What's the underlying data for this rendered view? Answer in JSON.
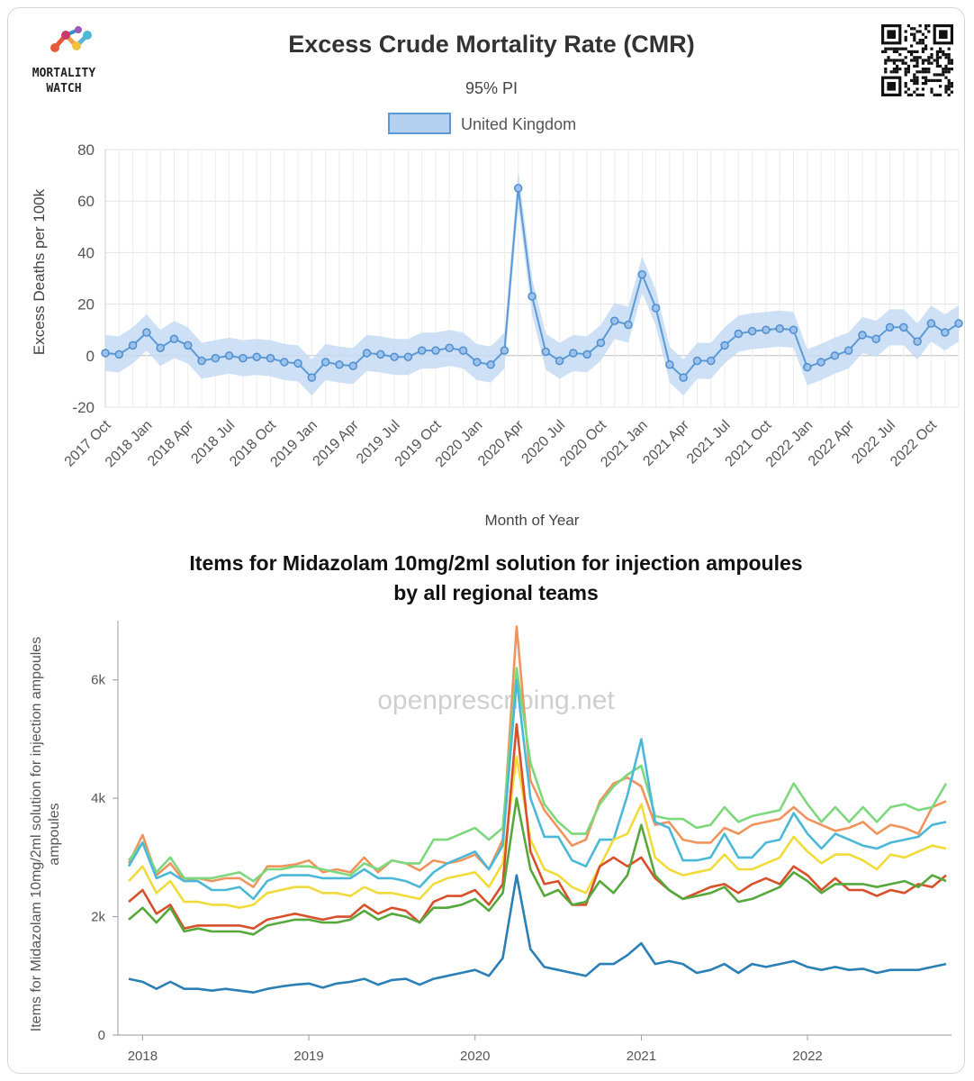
{
  "logo": {
    "line1": "MORTALITY",
    "line2": "WATCH"
  },
  "chart_data": [
    {
      "type": "line",
      "title": "Excess Crude Mortality Rate (CMR)",
      "subtitle": "95% PI",
      "xlabel": "Month of Year",
      "ylabel": "Excess Deaths per 100k",
      "ylim": [
        -20,
        80
      ],
      "yticks": [
        -20,
        0,
        20,
        40,
        60,
        80
      ],
      "grid": true,
      "legend_position": "top-center",
      "x_tick_labels": [
        "2017 Oct",
        "2018 Jan",
        "2018 Apr",
        "2018 Jul",
        "2018 Oct",
        "2019 Jan",
        "2019 Apr",
        "2019 Jul",
        "2019 Oct",
        "2020 Jan",
        "2020 Apr",
        "2020 Jul",
        "2020 Oct",
        "2021 Jan",
        "2021 Apr",
        "2021 Jul",
        "2021 Oct",
        "2022 Jan",
        "2022 Apr",
        "2022 Jul",
        "2022 Oct"
      ],
      "x": [
        "2017 Oct",
        "2017 Nov",
        "2017 Dec",
        "2018 Jan",
        "2018 Feb",
        "2018 Mar",
        "2018 Apr",
        "2018 May",
        "2018 Jun",
        "2018 Jul",
        "2018 Aug",
        "2018 Sep",
        "2018 Oct",
        "2018 Nov",
        "2018 Dec",
        "2019 Jan",
        "2019 Feb",
        "2019 Mar",
        "2019 Apr",
        "2019 May",
        "2019 Jun",
        "2019 Jul",
        "2019 Aug",
        "2019 Sep",
        "2019 Oct",
        "2019 Nov",
        "2019 Dec",
        "2020 Jan",
        "2020 Feb",
        "2020 Mar",
        "2020 Apr",
        "2020 May",
        "2020 Jun",
        "2020 Jul",
        "2020 Aug",
        "2020 Sep",
        "2020 Oct",
        "2020 Nov",
        "2020 Dec",
        "2021 Jan",
        "2021 Feb",
        "2021 Mar",
        "2021 Apr",
        "2021 May",
        "2021 Jun",
        "2021 Jul",
        "2021 Aug",
        "2021 Sep",
        "2021 Oct",
        "2021 Nov",
        "2021 Dec",
        "2022 Jan",
        "2022 Feb",
        "2022 Mar",
        "2022 Apr",
        "2022 May",
        "2022 Jun",
        "2022 Jul",
        "2022 Aug",
        "2022 Sep",
        "2022 Oct",
        "2022 Nov",
        "2022 Dec"
      ],
      "series": [
        {
          "name": "United Kingdom",
          "color": "#5b9bd5",
          "band_color": "#c6dbf3",
          "values": [
            1,
            0.5,
            4,
            9,
            3,
            6.5,
            4,
            -2,
            -1,
            0,
            -1,
            -0.5,
            -1,
            -2.5,
            -3,
            -8.5,
            -2.5,
            -3.5,
            -4,
            1,
            0.5,
            -0.5,
            -0.5,
            2,
            2,
            3,
            2,
            -2.5,
            -3.5,
            2,
            65,
            23,
            1.5,
            -2,
            1,
            0.5,
            5,
            13.5,
            12,
            31.5,
            18.5,
            -3.5,
            -8.5,
            -2,
            -2,
            4,
            8.5,
            9.5,
            10,
            10.5,
            10,
            -4.5,
            -2.5,
            0,
            2,
            8,
            6.5,
            11,
            11,
            5.5,
            12.5,
            9,
            12.5
          ],
          "lower": [
            -6,
            -6.5,
            -3,
            2,
            -4,
            -1,
            -3,
            -9,
            -8,
            -7,
            -8,
            -7.5,
            -8,
            -9.5,
            -10,
            -15.5,
            -9.5,
            -10.5,
            -11,
            -6,
            -6.5,
            -7.5,
            -7.5,
            -5,
            -5,
            -4,
            -5,
            -9.5,
            -10.5,
            -5,
            58,
            16,
            -5.5,
            -9,
            -6,
            -6.5,
            -2,
            6.5,
            5,
            24.5,
            11.5,
            -10.5,
            -15.5,
            -9,
            -9,
            -3,
            1.5,
            2.5,
            3,
            3.5,
            3,
            -11.5,
            -9.5,
            -7,
            -5,
            1,
            -0.5,
            4,
            4,
            -1.5,
            5.5,
            2,
            5.5
          ],
          "upper": [
            8,
            7.5,
            11,
            16,
            10,
            13.5,
            11,
            5,
            6,
            7,
            6,
            6.5,
            6,
            4.5,
            4,
            -1.5,
            4.5,
            3.5,
            3,
            8,
            7.5,
            6.5,
            6.5,
            9,
            9,
            10,
            9,
            4.5,
            3.5,
            9,
            72,
            30,
            8.5,
            5,
            8,
            7.5,
            12,
            20.5,
            19,
            38.5,
            25.5,
            3.5,
            -1.5,
            5,
            5,
            11,
            15.5,
            16.5,
            17,
            17.5,
            17,
            2.5,
            4.5,
            7,
            9,
            15,
            13.5,
            18,
            18,
            12.5,
            19.5,
            16,
            19.5
          ]
        }
      ]
    },
    {
      "type": "line",
      "title": "Items for Midazolam 10mg/2ml solution for injection ampoules",
      "title_line2": "by all regional teams",
      "ylabel": "Items for Midazolam 10mg/2ml solution for injection ampoules",
      "ylim": [
        0,
        7000
      ],
      "yticks": [
        0,
        2000,
        4000,
        6000
      ],
      "ytick_labels": [
        "0",
        "2k",
        "4k",
        "6k"
      ],
      "x_tick_labels": [
        "2018",
        "2019",
        "2020",
        "2021",
        "2022"
      ],
      "watermark": "openprescribing.net",
      "x_start": "2017-12",
      "series": [
        {
          "color": "#f0945e",
          "values": [
            2900,
            3380,
            2700,
            2900,
            2600,
            2650,
            2600,
            2650,
            2650,
            2500,
            2850,
            2850,
            2880,
            2950,
            2750,
            2800,
            2750,
            3000,
            2750,
            2950,
            2900,
            2780,
            2950,
            2900,
            2950,
            3050,
            2800,
            3300,
            6900,
            4300,
            3800,
            3500,
            3200,
            3300,
            3950,
            4250,
            4350,
            4200,
            3550,
            3600,
            3300,
            3250,
            3250,
            3500,
            3400,
            3550,
            3600,
            3650,
            3850,
            3650,
            3550,
            3450,
            3500,
            3600,
            3400,
            3550,
            3500,
            3400,
            3850,
            3950
          ]
        },
        {
          "color": "#7dd87d",
          "values": [
            2950,
            3250,
            2750,
            3000,
            2650,
            2650,
            2650,
            2700,
            2750,
            2600,
            2800,
            2800,
            2850,
            2850,
            2800,
            2750,
            2700,
            2900,
            2800,
            2950,
            2900,
            2900,
            3300,
            3300,
            3400,
            3500,
            3300,
            3500,
            6200,
            4600,
            3900,
            3600,
            3400,
            3400,
            3900,
            4200,
            4400,
            4550,
            3700,
            3650,
            3650,
            3500,
            3550,
            3850,
            3600,
            3700,
            3750,
            3800,
            4250,
            3900,
            3600,
            3850,
            3600,
            3850,
            3600,
            3850,
            3900,
            3800,
            3850,
            4250
          ]
        },
        {
          "color": "#4bb8d8",
          "values": [
            2850,
            3250,
            2650,
            2750,
            2600,
            2600,
            2450,
            2450,
            2500,
            2300,
            2600,
            2700,
            2700,
            2700,
            2650,
            2650,
            2650,
            2800,
            2650,
            2650,
            2600,
            2500,
            2750,
            2900,
            3000,
            3100,
            2800,
            3200,
            6000,
            4000,
            3350,
            3350,
            2950,
            2850,
            3300,
            3300,
            4050,
            5000,
            3600,
            3500,
            2950,
            2950,
            3000,
            3400,
            3000,
            3000,
            3250,
            3300,
            3750,
            3400,
            3150,
            3400,
            3300,
            3200,
            3150,
            3250,
            3300,
            3350,
            3550,
            3600
          ]
        },
        {
          "color": "#f0db3b",
          "values": [
            2600,
            2850,
            2400,
            2600,
            2250,
            2250,
            2200,
            2200,
            2150,
            2200,
            2400,
            2450,
            2500,
            2500,
            2400,
            2400,
            2350,
            2500,
            2400,
            2400,
            2350,
            2300,
            2550,
            2650,
            2700,
            2750,
            2500,
            2900,
            4700,
            3300,
            2800,
            2700,
            2500,
            2400,
            2850,
            3300,
            3400,
            3900,
            3000,
            2800,
            2700,
            2750,
            2800,
            3050,
            2800,
            2800,
            2900,
            3000,
            3350,
            3100,
            2900,
            3050,
            3050,
            2950,
            2800,
            3050,
            3000,
            3100,
            3200,
            3150
          ]
        },
        {
          "color": "#d8502a",
          "values": [
            2250,
            2450,
            2050,
            2200,
            1800,
            1850,
            1850,
            1850,
            1850,
            1800,
            1950,
            2000,
            2050,
            2000,
            1950,
            2000,
            2000,
            2200,
            2050,
            2150,
            2100,
            1900,
            2250,
            2350,
            2350,
            2450,
            2200,
            2550,
            5250,
            3100,
            2550,
            2600,
            2200,
            2200,
            2850,
            3000,
            2850,
            3000,
            2650,
            2450,
            2300,
            2400,
            2500,
            2550,
            2400,
            2550,
            2650,
            2550,
            2850,
            2700,
            2450,
            2650,
            2450,
            2450,
            2350,
            2450,
            2400,
            2550,
            2500,
            2700
          ]
        },
        {
          "color": "#56a83d",
          "values": [
            1950,
            2150,
            1900,
            2150,
            1750,
            1800,
            1750,
            1750,
            1750,
            1700,
            1850,
            1900,
            1950,
            1950,
            1900,
            1900,
            1950,
            2100,
            1950,
            2050,
            2000,
            1900,
            2150,
            2150,
            2200,
            2300,
            2100,
            2400,
            4000,
            2800,
            2350,
            2450,
            2200,
            2250,
            2600,
            2400,
            2700,
            3550,
            2700,
            2450,
            2300,
            2350,
            2400,
            2500,
            2250,
            2300,
            2400,
            2500,
            2750,
            2600,
            2400,
            2550,
            2550,
            2550,
            2500,
            2550,
            2600,
            2500,
            2700,
            2600
          ]
        },
        {
          "color": "#2a7fb5",
          "values": [
            950,
            900,
            780,
            900,
            780,
            780,
            750,
            780,
            750,
            720,
            780,
            820,
            850,
            870,
            800,
            870,
            900,
            950,
            850,
            930,
            950,
            850,
            950,
            1000,
            1050,
            1100,
            1000,
            1300,
            2700,
            1450,
            1150,
            1100,
            1050,
            1000,
            1200,
            1200,
            1350,
            1550,
            1200,
            1250,
            1200,
            1050,
            1100,
            1200,
            1050,
            1200,
            1150,
            1200,
            1250,
            1150,
            1100,
            1150,
            1100,
            1120,
            1050,
            1100,
            1100,
            1100,
            1150,
            1200
          ]
        }
      ]
    }
  ]
}
